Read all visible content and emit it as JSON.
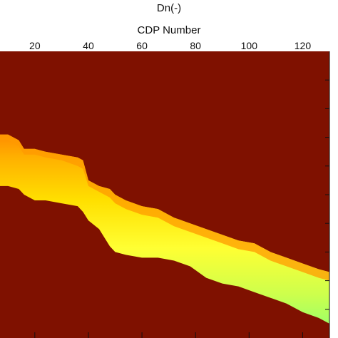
{
  "chart_data": {
    "type": "heatmap",
    "title": "Dn(-)",
    "xlabel": "CDP Number",
    "ylabel": "",
    "xlim": [
      7,
      130
    ],
    "ylim_fraction": [
      0,
      1
    ],
    "x_axis_position": "top",
    "x_ticks": [
      20,
      40,
      60,
      80,
      100,
      120
    ],
    "x_tick_labels": [
      "20",
      "40",
      "60",
      "80",
      "100",
      "120"
    ],
    "grid": false,
    "colormap": [
      "#7f0e00",
      "#ff8c00",
      "#ffd400",
      "#ffff33",
      "#a8ff60"
    ],
    "background_color": "#7f1100",
    "band": {
      "x": [
        7,
        10,
        14,
        16,
        20,
        24,
        30,
        36,
        38,
        40,
        44,
        48,
        50,
        54,
        60,
        66,
        72,
        78,
        84,
        90,
        96,
        102,
        108,
        114,
        120,
        126,
        130
      ],
      "top_depth": [
        0.29,
        0.29,
        0.31,
        0.34,
        0.34,
        0.35,
        0.36,
        0.37,
        0.38,
        0.45,
        0.47,
        0.48,
        0.5,
        0.52,
        0.54,
        0.55,
        0.58,
        0.6,
        0.62,
        0.64,
        0.66,
        0.67,
        0.7,
        0.72,
        0.74,
        0.76,
        0.77
      ],
      "bottom_depth": [
        0.47,
        0.47,
        0.48,
        0.5,
        0.52,
        0.52,
        0.53,
        0.54,
        0.56,
        0.59,
        0.62,
        0.68,
        0.7,
        0.71,
        0.72,
        0.72,
        0.73,
        0.75,
        0.79,
        0.81,
        0.82,
        0.84,
        0.86,
        0.88,
        0.91,
        0.93,
        0.95
      ],
      "core_depth": [
        0.31,
        0.31,
        0.33,
        0.36,
        0.36,
        0.37,
        0.38,
        0.4,
        0.41,
        0.47,
        0.49,
        0.51,
        0.53,
        0.55,
        0.57,
        0.58,
        0.61,
        0.63,
        0.65,
        0.67,
        0.69,
        0.7,
        0.73,
        0.75,
        0.77,
        0.79,
        0.8
      ]
    }
  }
}
